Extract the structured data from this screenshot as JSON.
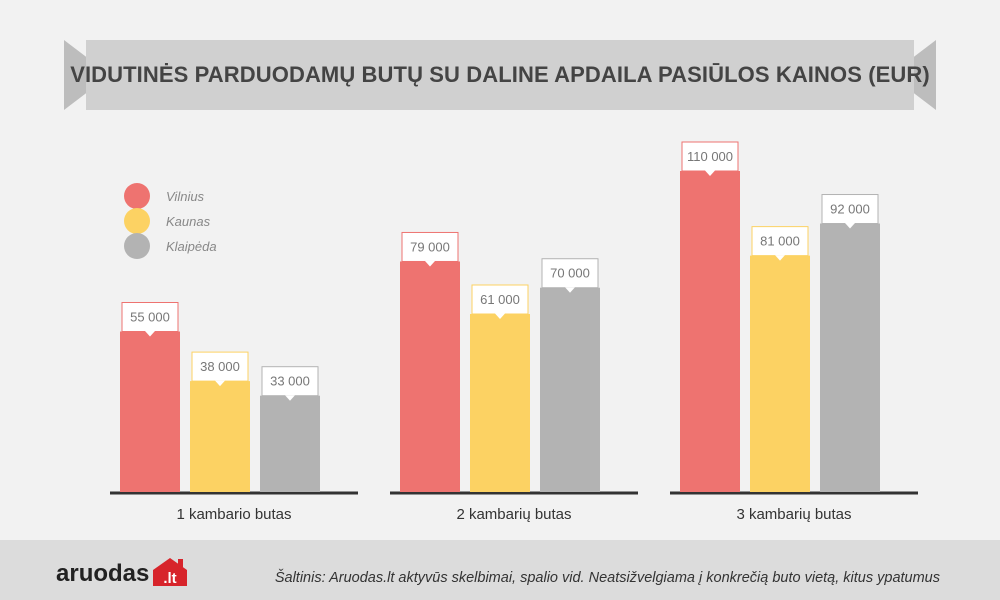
{
  "chart_data": {
    "type": "bar",
    "title": "VIDUTINĖS PARDUODAMŲ BUTŲ SU DALINE APDAILA PASIŪLOS KAINOS (EUR)",
    "categories": [
      "1 kambario butas",
      "2 kambarių butas",
      "3 kambarių butas"
    ],
    "series": [
      {
        "name": "Vilnius",
        "values": [
          55000,
          79000,
          110000
        ],
        "labels": [
          "55 000",
          "79 000",
          "110 000"
        ],
        "color": "#ee7370"
      },
      {
        "name": "Kaunas",
        "values": [
          38000,
          61000,
          81000
        ],
        "labels": [
          "38 000",
          "61 000",
          "81 000"
        ],
        "color": "#fcd263"
      },
      {
        "name": "Klaipėda",
        "values": [
          33000,
          70000,
          92000
        ],
        "labels": [
          "33 000",
          "70 000",
          "92 000"
        ],
        "color": "#b3b3b3"
      }
    ],
    "ylim": [
      0,
      110000
    ],
    "legend": "top-left",
    "grid": false
  },
  "footer": {
    "logo_text": "aruodas",
    "logo_suffix": ".lt",
    "source": "Šaltinis: Aruodas.lt aktyvūs skelbimai, spalio vid. Neatsižvelgiama į konkrečią buto vietą, kitus ypatumus"
  },
  "colors": {
    "banner": "#d0d0d0",
    "banner_fold": "#bdbdbd",
    "axis": "#333333",
    "logo_red": "#d7242b"
  }
}
